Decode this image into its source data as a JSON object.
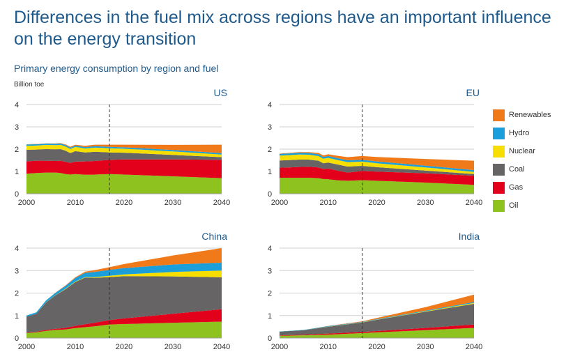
{
  "header": {
    "title": "Differences in the fuel mix across regions have an important influence on the energy transition",
    "subtitle": "Primary energy consumption by region and fuel",
    "unit": "Billion toe"
  },
  "legend": [
    {
      "name": "Renewables",
      "color": "#f07a1a"
    },
    {
      "name": "Hydro",
      "color": "#1a9fdb"
    },
    {
      "name": "Nuclear",
      "color": "#f5de00"
    },
    {
      "name": "Coal",
      "color": "#666464"
    },
    {
      "name": "Gas",
      "color": "#e3001b"
    },
    {
      "name": "Oil",
      "color": "#8dc21f"
    }
  ],
  "chart_data": [
    {
      "type": "area",
      "title": "US",
      "x": [
        2000,
        2002,
        2004,
        2006,
        2007,
        2008,
        2009,
        2010,
        2012,
        2014,
        2017,
        2020,
        2030,
        2040
      ],
      "projection_start": 2017,
      "ylim": [
        0,
        4
      ],
      "yticks": [
        "0",
        "1",
        "2",
        "3",
        "4"
      ],
      "xticks": [
        "2000",
        "2010",
        "2020",
        "2030",
        "2040"
      ],
      "series": [
        {
          "name": "Oil",
          "values": [
            0.9,
            0.93,
            0.95,
            0.95,
            0.93,
            0.88,
            0.86,
            0.88,
            0.85,
            0.86,
            0.88,
            0.86,
            0.78,
            0.7
          ]
        },
        {
          "name": "Gas",
          "values": [
            0.55,
            0.55,
            0.53,
            0.52,
            0.55,
            0.55,
            0.52,
            0.56,
            0.6,
            0.61,
            0.64,
            0.68,
            0.76,
            0.82
          ]
        },
        {
          "name": "Coal",
          "values": [
            0.52,
            0.5,
            0.52,
            0.52,
            0.52,
            0.5,
            0.44,
            0.47,
            0.4,
            0.41,
            0.33,
            0.3,
            0.2,
            0.12
          ]
        },
        {
          "name": "Nuclear",
          "values": [
            0.18,
            0.18,
            0.19,
            0.19,
            0.19,
            0.19,
            0.19,
            0.19,
            0.18,
            0.19,
            0.19,
            0.18,
            0.16,
            0.12
          ]
        },
        {
          "name": "Hydro",
          "values": [
            0.06,
            0.06,
            0.06,
            0.06,
            0.06,
            0.06,
            0.06,
            0.06,
            0.06,
            0.06,
            0.06,
            0.06,
            0.06,
            0.06
          ]
        },
        {
          "name": "Renewables",
          "values": [
            0.01,
            0.01,
            0.01,
            0.02,
            0.02,
            0.03,
            0.04,
            0.04,
            0.06,
            0.07,
            0.1,
            0.12,
            0.23,
            0.38
          ]
        }
      ]
    },
    {
      "type": "area",
      "title": "EU",
      "x": [
        2000,
        2002,
        2004,
        2006,
        2008,
        2009,
        2010,
        2012,
        2014,
        2017,
        2020,
        2030,
        2040
      ],
      "projection_start": 2017,
      "ylim": [
        0,
        4
      ],
      "yticks": [
        "0",
        "1",
        "2",
        "3",
        "4"
      ],
      "xticks": [
        "2000",
        "2010",
        "2020",
        "2030",
        "2040"
      ],
      "series": [
        {
          "name": "Oil",
          "values": [
            0.72,
            0.72,
            0.72,
            0.72,
            0.7,
            0.66,
            0.65,
            0.6,
            0.58,
            0.61,
            0.58,
            0.5,
            0.4
          ]
        },
        {
          "name": "Gas",
          "values": [
            0.45,
            0.46,
            0.48,
            0.49,
            0.48,
            0.45,
            0.48,
            0.43,
            0.37,
            0.41,
            0.41,
            0.42,
            0.41
          ]
        },
        {
          "name": "Coal",
          "values": [
            0.32,
            0.33,
            0.33,
            0.32,
            0.3,
            0.26,
            0.27,
            0.28,
            0.27,
            0.23,
            0.2,
            0.12,
            0.07
          ]
        },
        {
          "name": "Nuclear",
          "values": [
            0.22,
            0.22,
            0.23,
            0.22,
            0.21,
            0.2,
            0.21,
            0.2,
            0.2,
            0.19,
            0.18,
            0.14,
            0.1
          ]
        },
        {
          "name": "Hydro",
          "values": [
            0.08,
            0.08,
            0.08,
            0.08,
            0.08,
            0.08,
            0.08,
            0.08,
            0.08,
            0.08,
            0.08,
            0.08,
            0.08
          ]
        },
        {
          "name": "Renewables",
          "values": [
            0.01,
            0.02,
            0.03,
            0.04,
            0.06,
            0.07,
            0.08,
            0.11,
            0.14,
            0.17,
            0.2,
            0.3,
            0.42
          ]
        }
      ]
    },
    {
      "type": "area",
      "title": "China",
      "x": [
        2000,
        2002,
        2004,
        2006,
        2008,
        2010,
        2012,
        2014,
        2017,
        2020,
        2030,
        2040
      ],
      "projection_start": 2017,
      "ylim": [
        0,
        4
      ],
      "yticks": [
        "0",
        "1",
        "2",
        "3",
        "4"
      ],
      "xticks": [
        "2000",
        "2010",
        "2020",
        "2030",
        "2040"
      ],
      "series": [
        {
          "name": "Oil",
          "values": [
            0.22,
            0.25,
            0.32,
            0.36,
            0.38,
            0.44,
            0.48,
            0.52,
            0.6,
            0.62,
            0.68,
            0.73
          ]
        },
        {
          "name": "Gas",
          "values": [
            0.02,
            0.03,
            0.04,
            0.05,
            0.07,
            0.1,
            0.13,
            0.16,
            0.2,
            0.25,
            0.4,
            0.55
          ]
        },
        {
          "name": "Coal",
          "values": [
            0.71,
            0.8,
            1.22,
            1.5,
            1.72,
            1.95,
            2.08,
            2.0,
            1.91,
            1.88,
            1.66,
            1.42
          ]
        },
        {
          "name": "Nuclear",
          "values": [
            0.0,
            0.0,
            0.01,
            0.01,
            0.02,
            0.02,
            0.02,
            0.03,
            0.06,
            0.08,
            0.2,
            0.3
          ]
        },
        {
          "name": "Hydro",
          "values": [
            0.05,
            0.06,
            0.08,
            0.1,
            0.13,
            0.16,
            0.19,
            0.23,
            0.26,
            0.28,
            0.33,
            0.35
          ]
        },
        {
          "name": "Renewables",
          "values": [
            0.0,
            0.0,
            0.0,
            0.01,
            0.02,
            0.03,
            0.05,
            0.08,
            0.12,
            0.18,
            0.4,
            0.65
          ]
        }
      ]
    },
    {
      "type": "area",
      "title": "India",
      "x": [
        2000,
        2005,
        2010,
        2017,
        2020,
        2030,
        2040
      ],
      "projection_start": 2017,
      "ylim": [
        0,
        4
      ],
      "yticks": [
        "0",
        "1",
        "2",
        "3",
        "4"
      ],
      "xticks": [
        "2000",
        "2010",
        "2020",
        "2030",
        "2040"
      ],
      "series": [
        {
          "name": "Oil",
          "values": [
            0.1,
            0.12,
            0.15,
            0.22,
            0.25,
            0.35,
            0.45
          ]
        },
        {
          "name": "Gas",
          "values": [
            0.02,
            0.03,
            0.05,
            0.05,
            0.06,
            0.1,
            0.15
          ]
        },
        {
          "name": "Coal",
          "values": [
            0.16,
            0.2,
            0.3,
            0.42,
            0.5,
            0.72,
            0.92
          ]
        },
        {
          "name": "Nuclear",
          "values": [
            0.0,
            0.0,
            0.01,
            0.01,
            0.01,
            0.02,
            0.04
          ]
        },
        {
          "name": "Hydro",
          "values": [
            0.01,
            0.01,
            0.02,
            0.02,
            0.02,
            0.03,
            0.04
          ]
        },
        {
          "name": "Renewables",
          "values": [
            0.0,
            0.0,
            0.01,
            0.02,
            0.05,
            0.15,
            0.33
          ]
        }
      ]
    }
  ]
}
